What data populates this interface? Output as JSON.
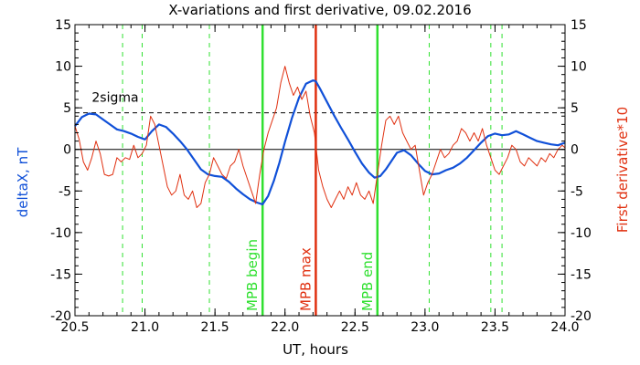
{
  "chart_data": {
    "type": "line",
    "title": "X-variations and first derivative, 09.02.2016",
    "xlabel": "UT, hours",
    "ylabel": "deltaX, nT",
    "y2label": "First derivative*10",
    "xlim": [
      20.5,
      24.0
    ],
    "ylim": [
      -20,
      15
    ],
    "y2lim": [
      -20,
      15
    ],
    "x_ticks": [
      "20.5",
      "21.0",
      "21.5",
      "22.0",
      "22.5",
      "23.0",
      "23.5",
      "24.0"
    ],
    "y_ticks": [
      "-20",
      "-15",
      "-10",
      "-5",
      "0",
      "5",
      "10",
      "15"
    ],
    "sigma_level": 4.4,
    "sigma_label": "2sigma",
    "colors": {
      "deltaX": "#1050d8",
      "derivative": "#e03010",
      "markers_green": "#30e030",
      "marker_red": "#e03010",
      "ylabel": "#1050d8",
      "y2label": "#e03010"
    },
    "dashed_markers": [
      20.84,
      20.98,
      21.46,
      23.03,
      23.47,
      23.55
    ],
    "markers": [
      {
        "x": 21.84,
        "label": "MPB begin",
        "color": "green"
      },
      {
        "x": 22.22,
        "label": "MPB max",
        "color": "red"
      },
      {
        "x": 22.66,
        "label": "MPB end",
        "color": "green"
      }
    ],
    "series": [
      {
        "key": "deltaX",
        "x": [
          20.5,
          20.55,
          20.6,
          20.65,
          20.7,
          20.75,
          20.8,
          20.85,
          20.9,
          20.95,
          21.0,
          21.05,
          21.1,
          21.15,
          21.2,
          21.25,
          21.3,
          21.35,
          21.4,
          21.45,
          21.5,
          21.55,
          21.6,
          21.65,
          21.7,
          21.75,
          21.8,
          21.84,
          21.88,
          21.92,
          21.96,
          22.0,
          22.05,
          22.1,
          22.15,
          22.2,
          22.22,
          22.25,
          22.3,
          22.35,
          22.4,
          22.45,
          22.5,
          22.55,
          22.6,
          22.64,
          22.68,
          22.72,
          22.76,
          22.8,
          22.85,
          22.9,
          22.95,
          23.0,
          23.05,
          23.1,
          23.15,
          23.2,
          23.25,
          23.3,
          23.35,
          23.4,
          23.45,
          23.5,
          23.55,
          23.6,
          23.65,
          23.7,
          23.75,
          23.8,
          23.85,
          23.9,
          23.95,
          24.0
        ],
        "values": [
          2.8,
          3.9,
          4.3,
          4.2,
          3.6,
          3.0,
          2.4,
          2.2,
          1.9,
          1.5,
          1.2,
          2.2,
          3.0,
          2.7,
          1.9,
          1.0,
          0.0,
          -1.2,
          -2.4,
          -3.0,
          -3.2,
          -3.3,
          -3.9,
          -4.7,
          -5.4,
          -6.0,
          -6.4,
          -6.6,
          -5.6,
          -3.8,
          -1.6,
          0.9,
          3.8,
          6.2,
          7.9,
          8.3,
          8.2,
          7.3,
          5.7,
          4.1,
          2.6,
          1.2,
          -0.3,
          -1.7,
          -2.8,
          -3.4,
          -3.2,
          -2.4,
          -1.4,
          -0.4,
          -0.1,
          -0.7,
          -1.7,
          -2.6,
          -3.0,
          -2.9,
          -2.5,
          -2.2,
          -1.7,
          -1.0,
          -0.1,
          0.8,
          1.6,
          1.9,
          1.7,
          1.8,
          2.2,
          1.8,
          1.4,
          1.0,
          0.8,
          0.6,
          0.5,
          0.8
        ]
      },
      {
        "key": "derivative",
        "x": [
          20.5,
          20.53,
          20.56,
          20.59,
          20.62,
          20.65,
          20.68,
          20.71,
          20.74,
          20.77,
          20.8,
          20.83,
          20.86,
          20.89,
          20.92,
          20.95,
          20.98,
          21.01,
          21.04,
          21.07,
          21.1,
          21.13,
          21.16,
          21.19,
          21.22,
          21.25,
          21.28,
          21.31,
          21.34,
          21.37,
          21.4,
          21.43,
          21.46,
          21.49,
          21.52,
          21.55,
          21.58,
          21.61,
          21.64,
          21.67,
          21.7,
          21.73,
          21.76,
          21.79,
          21.82,
          21.85,
          21.88,
          21.91,
          21.94,
          21.97,
          22.0,
          22.03,
          22.06,
          22.09,
          22.12,
          22.15,
          22.18,
          22.21,
          22.24,
          22.27,
          22.3,
          22.33,
          22.36,
          22.39,
          22.42,
          22.45,
          22.48,
          22.51,
          22.54,
          22.57,
          22.6,
          22.63,
          22.66,
          22.69,
          22.72,
          22.75,
          22.78,
          22.81,
          22.84,
          22.87,
          22.9,
          22.93,
          22.96,
          22.99,
          23.02,
          23.05,
          23.08,
          23.11,
          23.14,
          23.17,
          23.2,
          23.23,
          23.26,
          23.29,
          23.32,
          23.35,
          23.38,
          23.41,
          23.44,
          23.47,
          23.5,
          23.53,
          23.56,
          23.59,
          23.62,
          23.65,
          23.68,
          23.71,
          23.74,
          23.77,
          23.8,
          23.83,
          23.86,
          23.89,
          23.92,
          23.95,
          23.98,
          24.0
        ],
        "values": [
          2.8,
          1.2,
          -1.5,
          -2.5,
          -1.0,
          1.0,
          -0.5,
          -3.0,
          -3.2,
          -3.0,
          -1.0,
          -1.5,
          -1.0,
          -1.2,
          0.5,
          -1.0,
          -0.5,
          0.5,
          4.0,
          3.0,
          0.5,
          -2.0,
          -4.5,
          -5.5,
          -5.0,
          -3.0,
          -5.5,
          -6.0,
          -5.0,
          -7.0,
          -6.5,
          -4.0,
          -3.0,
          -1.0,
          -2.0,
          -3.0,
          -3.5,
          -2.0,
          -1.5,
          0.0,
          -2.0,
          -3.5,
          -5.0,
          -6.5,
          -3.0,
          0.0,
          2.0,
          3.5,
          5.0,
          8.0,
          10.0,
          8.0,
          6.5,
          7.5,
          6.0,
          7.0,
          4.0,
          2.0,
          -2.5,
          -4.5,
          -6.0,
          -7.0,
          -6.0,
          -5.0,
          -6.0,
          -4.5,
          -5.5,
          -4.0,
          -5.5,
          -6.0,
          -5.0,
          -6.5,
          -3.0,
          0.5,
          3.5,
          4.0,
          3.0,
          4.0,
          2.0,
          1.0,
          0.0,
          0.5,
          -2.5,
          -5.5,
          -4.0,
          -3.0,
          -1.5,
          0.0,
          -1.0,
          -0.5,
          0.5,
          1.0,
          2.5,
          2.0,
          1.0,
          2.0,
          1.0,
          2.5,
          0.5,
          -1.0,
          -2.5,
          -3.0,
          -2.0,
          -1.0,
          0.5,
          0.0,
          -1.5,
          -2.0,
          -1.0,
          -1.5,
          -2.0,
          -1.0,
          -1.5,
          -0.5,
          -1.0,
          0.0,
          0.5,
          0.2
        ]
      }
    ]
  }
}
